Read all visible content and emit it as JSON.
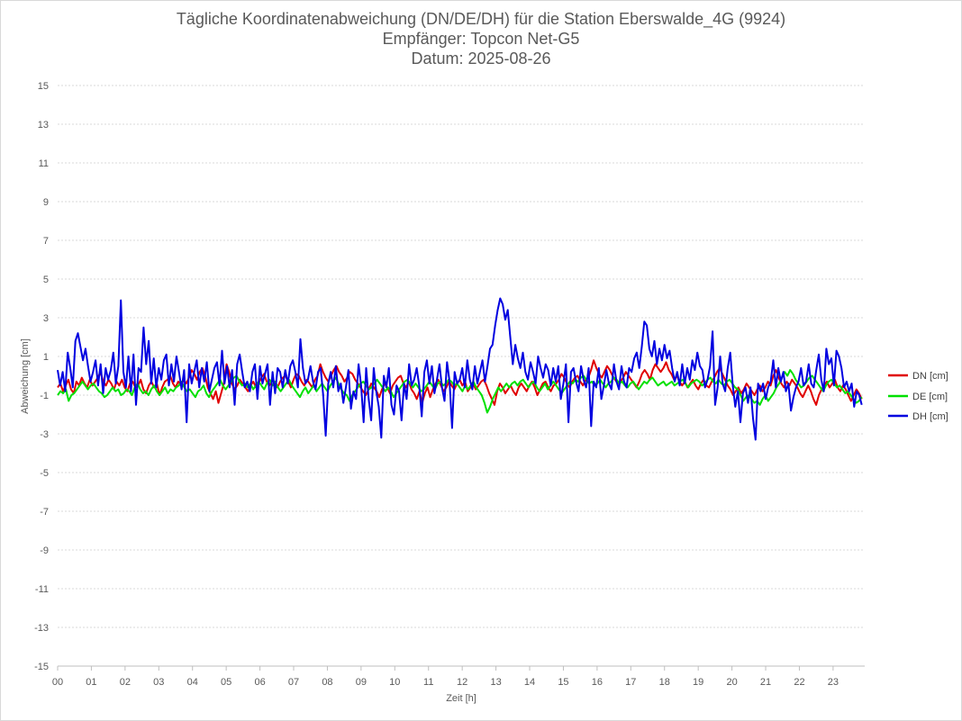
{
  "chart_data": {
    "type": "line",
    "title": "Tägliche Koordinatenabweichung (DN/DE/DH) für die Station Eberswalde_4G (9924)",
    "subtitle1": "Empfänger: Topcon Net-G5",
    "subtitle2": "Datum: 2025-08-26",
    "xlabel": "Zeit [h]",
    "ylabel": "Abweichung [cm]",
    "ylim": [
      -15,
      15
    ],
    "xlim": [
      0,
      24
    ],
    "yticks": [
      "15",
      "13",
      "11",
      "9",
      "7",
      "5",
      "3",
      "1",
      "-1",
      "-3",
      "-5",
      "-7",
      "-9",
      "-11",
      "-13",
      "-15"
    ],
    "xticks": [
      "00",
      "01",
      "02",
      "03",
      "04",
      "05",
      "06",
      "07",
      "08",
      "09",
      "10",
      "11",
      "12",
      "13",
      "14",
      "15",
      "16",
      "17",
      "18",
      "19",
      "20",
      "21",
      "22",
      "23"
    ],
    "legend_position": "right",
    "series": [
      {
        "name": "DN [cm]",
        "color": "#e00000",
        "values": [
          -0.6,
          -0.4,
          -0.8,
          -0.5,
          -0.2,
          -0.7,
          -0.9,
          -0.3,
          -0.5,
          -0.1,
          -0.4,
          -0.6,
          -0.2,
          -0.5,
          -0.3,
          -0.1,
          0.2,
          -0.3,
          -0.5,
          -0.2,
          -0.4,
          -0.7,
          -0.3,
          -0.5,
          -0.2,
          -0.6,
          -0.8,
          -0.4,
          -0.3,
          -0.6,
          -0.5,
          -0.2,
          -0.7,
          -0.9,
          -0.5,
          -0.3,
          -0.6,
          -0.4,
          -1.0,
          -0.6,
          -0.3,
          -0.2,
          0.0,
          -0.4,
          -0.6,
          -0.3,
          -0.5,
          -0.2,
          -0.4,
          -0.1,
          0.3,
          0.1,
          -0.2,
          0.2,
          0.4,
          0.0,
          -0.6,
          -0.9,
          -1.2,
          -0.8,
          -1.4,
          -0.9,
          -0.4,
          0.6,
          0.2,
          -0.4,
          -0.7,
          -0.5,
          -0.2,
          -0.4,
          -0.6,
          -0.8,
          -0.5,
          -0.3,
          -0.6,
          -0.4,
          -0.1,
          0.1,
          -0.3,
          -0.5,
          -0.2,
          -0.4,
          -0.6,
          -0.3,
          -0.1,
          0.0,
          -0.3,
          -0.6,
          -0.2,
          0.1,
          0.0,
          -0.3,
          -0.5,
          -0.2,
          -0.4,
          -0.6,
          -0.2,
          0.0,
          0.6,
          0.2,
          -0.1,
          -0.3,
          0.0,
          0.3,
          0.5,
          0.2,
          0.0,
          -0.3,
          -0.1,
          0.2,
          0.1,
          -0.2,
          -0.4,
          -0.6,
          -0.8,
          -1.0,
          -0.7,
          -0.4,
          -0.6,
          -0.8,
          -1.1,
          -0.7,
          -0.4,
          -0.6,
          -0.9,
          -0.5,
          -0.3,
          -0.1,
          0.0,
          -0.4,
          -0.6,
          -0.3,
          -0.7,
          -0.9,
          -1.2,
          -0.8,
          -1.4,
          -0.9,
          -0.6,
          -1.1,
          -0.7,
          -0.4,
          -0.2,
          -0.5,
          -0.8,
          -0.6,
          -0.3,
          -0.5,
          -0.7,
          -0.4,
          -0.2,
          -0.5,
          -0.3,
          -0.8,
          -0.6,
          -0.4,
          -0.7,
          -0.5,
          -0.3,
          -0.2,
          -0.5,
          -0.9,
          -1.2,
          -1.5,
          -0.8,
          -0.4,
          -0.6,
          -0.9,
          -0.7,
          -0.5,
          -0.8,
          -1.0,
          -0.6,
          -0.4,
          -0.6,
          -0.8,
          -0.5,
          -0.3,
          -0.6,
          -1.0,
          -0.7,
          -0.4,
          -0.3,
          -0.6,
          -0.8,
          -0.5,
          -0.4,
          -0.2,
          0.1,
          -0.1,
          -0.4,
          -0.6,
          -0.3,
          -0.1,
          0.0,
          -0.3,
          -0.5,
          -0.2,
          -0.1,
          0.3,
          0.8,
          0.4,
          0.1,
          -0.1,
          0.2,
          0.5,
          0.3,
          0.0,
          -0.2,
          -0.4,
          -0.3,
          -0.1,
          0.2,
          0.0,
          -0.2,
          -0.4,
          -0.6,
          -0.3,
          0.1,
          0.3,
          0.1,
          -0.2,
          0.3,
          0.6,
          0.4,
          0.2,
          0.4,
          0.7,
          0.3,
          0.1,
          -0.2,
          0.0,
          -0.3,
          -0.5,
          -0.3,
          -0.6,
          -0.4,
          -0.2,
          -0.5,
          -0.7,
          -0.4,
          -0.2,
          -0.5,
          -0.6,
          -0.3,
          -0.1,
          0.2,
          0.4,
          0.1,
          -0.2,
          -0.5,
          -0.7,
          -1.0,
          -0.8,
          -0.6,
          -0.9,
          -0.7,
          -0.4,
          -0.6,
          -0.8,
          -1.0,
          -0.7,
          -0.5,
          -0.8,
          -0.6,
          -0.3,
          -0.5,
          0.0,
          0.3,
          -0.1,
          -0.4,
          -0.6,
          -0.3,
          -0.5,
          -0.2,
          -0.4,
          -0.6,
          -0.9,
          -1.1,
          -0.8,
          -0.5,
          -0.8,
          -1.2,
          -1.5,
          -1.0,
          -0.7,
          -0.5,
          -0.3,
          -0.6,
          -0.4,
          -0.2,
          -0.6,
          -0.8,
          -0.5,
          -0.7,
          -1.0,
          -1.3,
          -1.0,
          -0.7,
          -0.9,
          -1.2
        ]
      },
      {
        "name": "DE [cm]",
        "color": "#00e000",
        "values": [
          -1.0,
          -0.8,
          -0.9,
          -0.7,
          -1.3,
          -1.0,
          -0.9,
          -0.7,
          -0.5,
          -0.3,
          -0.5,
          -0.7,
          -0.5,
          -0.4,
          -0.6,
          -0.8,
          -0.9,
          -1.1,
          -1.0,
          -0.8,
          -0.6,
          -0.8,
          -0.7,
          -1.0,
          -0.9,
          -0.7,
          -0.8,
          -1.0,
          -0.6,
          -0.4,
          -0.7,
          -0.9,
          -0.8,
          -1.0,
          -0.7,
          -0.5,
          -0.8,
          -1.0,
          -0.8,
          -0.6,
          -0.9,
          -0.7,
          -0.8,
          -0.6,
          -0.5,
          -0.3,
          -0.6,
          -0.8,
          -0.7,
          -0.9,
          -1.1,
          -0.8,
          -0.7,
          -0.5,
          -0.9,
          -1.1,
          -0.8,
          -0.6,
          -0.4,
          -0.2,
          -0.5,
          -0.7,
          -0.5,
          -0.3,
          -0.1,
          0.0,
          -0.3,
          -0.5,
          -0.4,
          -0.6,
          -0.4,
          -0.7,
          -0.5,
          -0.3,
          -0.5,
          -0.7,
          -0.4,
          -0.2,
          -0.5,
          -0.3,
          -0.6,
          -0.8,
          -0.6,
          -0.4,
          -0.2,
          -0.5,
          -0.7,
          -0.9,
          -1.1,
          -0.8,
          -0.6,
          -0.9,
          -0.7,
          -0.5,
          -0.8,
          -0.6,
          -0.4,
          -0.6,
          -0.8,
          -0.5,
          -0.3,
          -0.1,
          -0.4,
          -0.7,
          -0.9,
          -1.0,
          -1.3,
          -1.0,
          -0.8,
          -0.6,
          -0.4,
          -0.3,
          -0.5,
          -0.7,
          -0.6,
          -0.4,
          -0.2,
          -0.4,
          -0.6,
          -0.8,
          -0.6,
          -0.8,
          -1.1,
          -0.9,
          -0.7,
          -0.5,
          -0.3,
          -0.2,
          -0.4,
          -0.6,
          -0.4,
          -0.6,
          -0.8,
          -0.7,
          -0.5,
          -0.3,
          -0.5,
          -0.7,
          -0.4,
          -0.3,
          -0.5,
          -0.4,
          -0.2,
          -0.3,
          -0.5,
          -0.4,
          -0.6,
          -0.8,
          -0.5,
          -0.7,
          -0.5,
          -0.3,
          -0.6,
          -0.8,
          -1.0,
          -1.4,
          -1.9,
          -1.6,
          -1.2,
          -0.9,
          -0.6,
          -0.8,
          -0.6,
          -0.4,
          -0.6,
          -0.4,
          -0.3,
          -0.5,
          -0.3,
          -0.2,
          -0.4,
          -0.6,
          -0.4,
          -0.3,
          -0.6,
          -0.8,
          -0.6,
          -0.4,
          -0.7,
          -0.5,
          -0.3,
          -0.5,
          -0.7,
          -0.9,
          -0.7,
          -0.5,
          -0.3,
          -0.4,
          -0.2,
          -0.3,
          -0.1,
          0.0,
          -0.2,
          -0.4,
          -0.3,
          -0.5,
          -0.4,
          -0.2,
          -0.4,
          -0.6,
          -0.4,
          -0.3,
          -0.1,
          -0.2,
          -0.4,
          -0.3,
          -0.5,
          -0.6,
          -0.4,
          -0.3,
          -0.5,
          -0.7,
          -0.5,
          -0.3,
          -0.4,
          -0.2,
          -0.1,
          -0.3,
          -0.5,
          -0.4,
          -0.3,
          -0.5,
          -0.4,
          -0.3,
          -0.5,
          -0.4,
          -0.3,
          -0.2,
          -0.4,
          -0.6,
          -0.4,
          -0.3,
          -0.2,
          -0.3,
          -0.5,
          -0.4,
          -0.2,
          -0.1,
          -0.3,
          -0.4,
          -0.2,
          -0.4,
          -0.5,
          -0.3,
          -0.2,
          -0.4,
          -0.6,
          -0.7,
          -1.0,
          -1.3,
          -1.1,
          -1.0,
          -1.2,
          -1.4,
          -1.3,
          -1.5,
          -1.2,
          -1.0,
          -1.3,
          -1.1,
          -0.9,
          -0.6,
          -0.4,
          -0.1,
          0.2,
          0.0,
          0.3,
          0.1,
          -0.2,
          -0.4,
          -0.6,
          -0.5,
          -0.3,
          -0.1,
          0.0,
          -0.2,
          -0.4,
          -0.6,
          -0.8,
          -0.5,
          -0.3,
          -0.2,
          -0.4,
          -0.6,
          -0.5,
          -0.7,
          -0.9,
          -0.8,
          -1.0,
          -1.2,
          -1.4,
          -1.3,
          -1.1
        ]
      },
      {
        "name": "DH [cm]",
        "color": "#0000e0",
        "values": [
          0.3,
          -0.5,
          0.2,
          -0.8,
          1.2,
          0.4,
          -0.6,
          1.8,
          2.2,
          1.5,
          0.8,
          1.4,
          0.5,
          -0.3,
          0.2,
          0.8,
          -0.5,
          0.6,
          -0.9,
          0.4,
          -0.2,
          0.3,
          1.2,
          -0.4,
          0.5,
          3.9,
          0.2,
          -0.6,
          1.0,
          -0.8,
          1.1,
          -1.5,
          0.4,
          0.2,
          2.5,
          0.6,
          1.8,
          -0.4,
          0.9,
          -0.6,
          0.4,
          -0.2,
          0.8,
          1.1,
          -0.5,
          0.6,
          -0.3,
          1.0,
          0.2,
          -0.7,
          0.3,
          -2.4,
          0.6,
          -0.4,
          0.2,
          0.8,
          -0.6,
          0.4,
          -0.3,
          0.7,
          -0.8,
          -0.2,
          0.4,
          0.7,
          -0.5,
          1.3,
          -0.4,
          0.5,
          -0.6,
          0.3,
          -1.5,
          0.6,
          1.1,
          0.2,
          -0.6,
          -0.3,
          -0.8,
          0.2,
          0.6,
          -1.2,
          0.5,
          -0.4,
          0.1,
          0.6,
          -1.5,
          0.2,
          -0.9,
          0.4,
          0.2,
          -0.6,
          0.3,
          -0.4,
          0.5,
          0.8,
          0.2,
          -0.6,
          1.9,
          0.4,
          -0.4,
          -0.2,
          0.5,
          -0.3,
          -0.7,
          0.2,
          0.4,
          -1.0,
          -3.1,
          -0.4,
          0.2,
          -0.6,
          0.5,
          -0.8,
          -0.4,
          -1.4,
          -0.6,
          0.3,
          -1.7,
          -0.8,
          -1.2,
          0.6,
          -0.5,
          -2.4,
          0.4,
          -1.2,
          -2.3,
          0.4,
          -0.8,
          -1.6,
          -3.2,
          0.0,
          -0.6,
          0.4,
          -1.5,
          -2.0,
          -0.5,
          -0.8,
          -2.3,
          -0.4,
          -1.2,
          0.6,
          -0.5,
          -0.2,
          0.4,
          -0.5,
          -2.1,
          0.2,
          0.8,
          -0.4,
          0.5,
          -0.9,
          -0.2,
          0.6,
          -0.6,
          -1.3,
          0.7,
          -0.3,
          -2.7,
          0.2,
          -0.4,
          -0.2,
          0.4,
          -0.6,
          0.8,
          -0.2,
          -0.7,
          0.5,
          -0.4,
          0.2,
          0.8,
          -0.3,
          0.5,
          1.4,
          1.6,
          2.6,
          3.4,
          4.0,
          3.7,
          2.9,
          3.4,
          2.0,
          0.6,
          1.6,
          0.9,
          0.4,
          1.2,
          0.2,
          -0.2,
          0.7,
          0.2,
          -0.4,
          1.0,
          0.4,
          -0.1,
          0.6,
          0.3,
          -0.5,
          0.4,
          -0.3,
          0.5,
          -1.2,
          -0.4,
          0.6,
          -2.4,
          0.2,
          0.4,
          -0.3,
          -0.8,
          0.5,
          -0.2,
          -0.6,
          0.4,
          -2.6,
          -0.3,
          -0.6,
          0.4,
          -1.2,
          -0.5,
          0.3,
          -0.4,
          -0.7,
          0.6,
          -0.3,
          -0.7,
          0.5,
          -0.3,
          -0.6,
          0.4,
          0.2,
          0.9,
          1.2,
          0.4,
          1.5,
          2.8,
          2.6,
          1.4,
          1.0,
          1.8,
          0.6,
          1.4,
          0.8,
          1.6,
          0.9,
          1.3,
          0.4,
          -0.3,
          0.2,
          -0.5,
          0.6,
          -0.4,
          0.4,
          -0.2,
          0.8,
          0.3,
          1.2,
          0.5,
          0.3,
          -0.6,
          -0.2,
          0.5,
          2.3,
          -1.5,
          -0.6,
          1.0,
          -0.4,
          -0.8,
          0.4,
          1.2,
          -0.5,
          -1.6,
          -0.8,
          -2.4,
          -0.9,
          -0.6,
          -1.4,
          -0.6,
          -2.2,
          -3.3,
          -0.4,
          -0.8,
          -0.4,
          -1.2,
          -0.6,
          -0.3,
          0.8,
          -0.6,
          0.4,
          -0.3,
          0.2,
          -0.8,
          -0.4,
          -1.8,
          -1.1,
          -0.6,
          -0.3,
          0.4,
          -0.5,
          -0.3,
          0.6,
          -0.4,
          -0.6,
          0.3,
          1.1,
          -0.2,
          -0.8,
          1.4,
          0.6,
          0.9,
          -0.5,
          1.3,
          1.0,
          0.4,
          -0.6,
          -0.3,
          -0.8,
          -0.4,
          -1.6,
          -0.8,
          -1.0,
          -1.5
        ]
      }
    ]
  }
}
